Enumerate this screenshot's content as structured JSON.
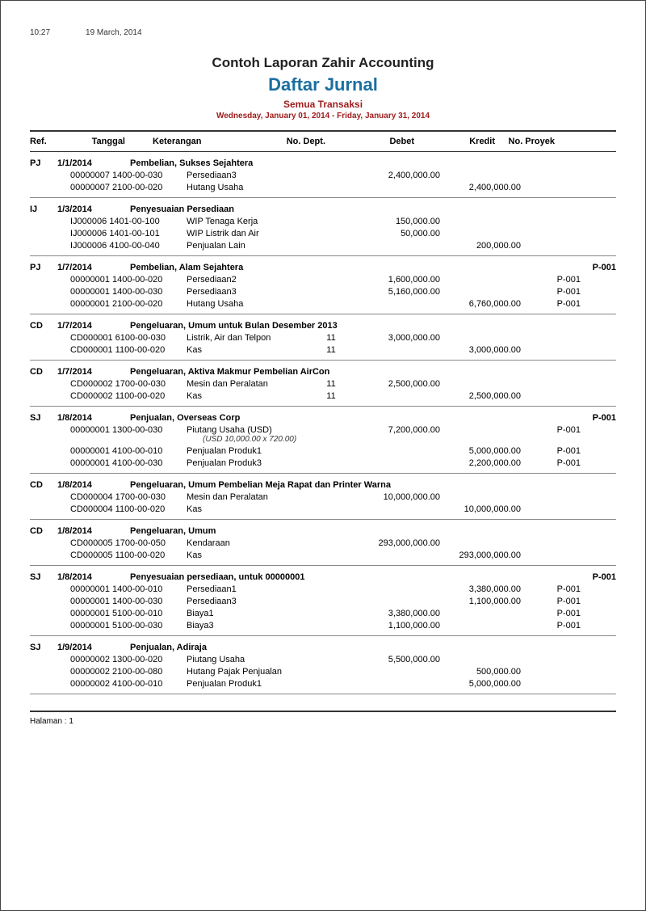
{
  "meta": {
    "time": "10:27",
    "date": "19 March, 2014"
  },
  "header": {
    "company": "Contoh Laporan Zahir Accounting",
    "title": "Daftar Jurnal",
    "subtitle": "Semua Transaksi",
    "range": "Wednesday, January 01, 2014 - Friday, January 31, 2014"
  },
  "columns": {
    "ref": "Ref.",
    "tanggal": "Tanggal",
    "ket": "Keterangan",
    "dept": "No. Dept.",
    "debet": "Debet",
    "kredit": "Kredit",
    "proyek": "No. Proyek"
  },
  "colors": {
    "title": "#1b6fa0",
    "subtitle": "#9f1b1b",
    "border": "#333333",
    "text": "#000000"
  },
  "groups": [
    {
      "ref": "PJ",
      "date": "1/1/2014",
      "desc": "Pembelian, Sukses Sejahtera",
      "proj": "",
      "lines": [
        {
          "code": "00000007 1400-00-030",
          "ket": "Persediaan3",
          "dept": "",
          "debet": "2,400,000.00",
          "kredit": "",
          "proj": ""
        },
        {
          "code": "00000007 2100-00-020",
          "ket": "Hutang Usaha",
          "dept": "",
          "debet": "",
          "kredit": "2,400,000.00",
          "proj": ""
        }
      ]
    },
    {
      "ref": "IJ",
      "date": "1/3/2014",
      "desc": "Penyesuaian Persediaan",
      "proj": "",
      "lines": [
        {
          "code": "IJ000006 1401-00-100",
          "ket": "WIP Tenaga Kerja",
          "dept": "",
          "debet": "150,000.00",
          "kredit": "",
          "proj": ""
        },
        {
          "code": "IJ000006 1401-00-101",
          "ket": "WIP Listrik dan Air",
          "dept": "",
          "debet": "50,000.00",
          "kredit": "",
          "proj": ""
        },
        {
          "code": "IJ000006 4100-00-040",
          "ket": "Penjualan Lain",
          "dept": "",
          "debet": "",
          "kredit": "200,000.00",
          "proj": ""
        }
      ]
    },
    {
      "ref": "PJ",
      "date": "1/7/2014",
      "desc": "Pembelian, Alam Sejahtera",
      "proj": "P-001",
      "lines": [
        {
          "code": "00000001 1400-00-020",
          "ket": "Persediaan2",
          "dept": "",
          "debet": "1,600,000.00",
          "kredit": "",
          "proj": "P-001"
        },
        {
          "code": "00000001 1400-00-030",
          "ket": "Persediaan3",
          "dept": "",
          "debet": "5,160,000.00",
          "kredit": "",
          "proj": "P-001"
        },
        {
          "code": "00000001 2100-00-020",
          "ket": "Hutang Usaha",
          "dept": "",
          "debet": "",
          "kredit": "6,760,000.00",
          "proj": "P-001"
        }
      ]
    },
    {
      "ref": "CD",
      "date": "1/7/2014",
      "desc": "Pengeluaran, Umum untuk Bulan Desember 2013",
      "proj": "",
      "lines": [
        {
          "code": "CD000001 6100-00-030",
          "ket": "Listrik, Air dan Telpon",
          "dept": "11",
          "debet": "3,000,000.00",
          "kredit": "",
          "proj": ""
        },
        {
          "code": "CD000001 1100-00-020",
          "ket": "Kas",
          "dept": "11",
          "debet": "",
          "kredit": "3,000,000.00",
          "proj": ""
        }
      ]
    },
    {
      "ref": "CD",
      "date": "1/7/2014",
      "desc": "Pengeluaran, Aktiva Makmur Pembelian AirCon",
      "proj": "",
      "lines": [
        {
          "code": "CD000002 1700-00-030",
          "ket": "Mesin dan Peralatan",
          "dept": "11",
          "debet": "2,500,000.00",
          "kredit": "",
          "proj": ""
        },
        {
          "code": "CD000002 1100-00-020",
          "ket": "Kas",
          "dept": "11",
          "debet": "",
          "kredit": "2,500,000.00",
          "proj": ""
        }
      ]
    },
    {
      "ref": "SJ",
      "date": "1/8/2014",
      "desc": "Penjualan, Overseas Corp",
      "proj": "P-001",
      "lines": [
        {
          "code": "00000001 1300-00-030",
          "ket": "Piutang Usaha (USD)",
          "dept": "",
          "debet": "7,200,000.00",
          "kredit": "",
          "proj": "P-001",
          "note": "(USD        10,000.00 x 720.00)"
        },
        {
          "code": "00000001 4100-00-010",
          "ket": "Penjualan Produk1",
          "dept": "",
          "debet": "",
          "kredit": "5,000,000.00",
          "proj": "P-001"
        },
        {
          "code": "00000001 4100-00-030",
          "ket": "Penjualan Produk3",
          "dept": "",
          "debet": "",
          "kredit": "2,200,000.00",
          "proj": "P-001"
        }
      ]
    },
    {
      "ref": "CD",
      "date": "1/8/2014",
      "desc": "Pengeluaran, Umum Pembelian Meja Rapat dan Printer Warna",
      "proj": "",
      "lines": [
        {
          "code": "CD000004 1700-00-030",
          "ket": "Mesin dan Peralatan",
          "dept": "",
          "debet": "10,000,000.00",
          "kredit": "",
          "proj": ""
        },
        {
          "code": "CD000004 1100-00-020",
          "ket": "Kas",
          "dept": "",
          "debet": "",
          "kredit": "10,000,000.00",
          "proj": ""
        }
      ]
    },
    {
      "ref": "CD",
      "date": "1/8/2014",
      "desc": "Pengeluaran, Umum",
      "proj": "",
      "lines": [
        {
          "code": "CD000005 1700-00-050",
          "ket": "Kendaraan",
          "dept": "",
          "debet": "293,000,000.00",
          "kredit": "",
          "proj": ""
        },
        {
          "code": "CD000005 1100-00-020",
          "ket": "Kas",
          "dept": "",
          "debet": "",
          "kredit": "293,000,000.00",
          "proj": ""
        }
      ]
    },
    {
      "ref": "SJ",
      "date": "1/8/2014",
      "desc": "Penyesuaian persediaan, untuk 00000001",
      "proj": "P-001",
      "lines": [
        {
          "code": "00000001 1400-00-010",
          "ket": "Persediaan1",
          "dept": "",
          "debet": "",
          "kredit": "3,380,000.00",
          "proj": "P-001"
        },
        {
          "code": "00000001 1400-00-030",
          "ket": "Persediaan3",
          "dept": "",
          "debet": "",
          "kredit": "1,100,000.00",
          "proj": "P-001"
        },
        {
          "code": "00000001 5100-00-010",
          "ket": "Biaya1",
          "dept": "",
          "debet": "3,380,000.00",
          "kredit": "",
          "proj": "P-001"
        },
        {
          "code": "00000001 5100-00-030",
          "ket": "Biaya3",
          "dept": "",
          "debet": "1,100,000.00",
          "kredit": "",
          "proj": "P-001"
        }
      ]
    },
    {
      "ref": "SJ",
      "date": "1/9/2014",
      "desc": "Penjualan, Adiraja",
      "proj": "",
      "lines": [
        {
          "code": "00000002 1300-00-020",
          "ket": "Piutang Usaha",
          "dept": "",
          "debet": "5,500,000.00",
          "kredit": "",
          "proj": ""
        },
        {
          "code": "00000002 2100-00-080",
          "ket": "Hutang Pajak Penjualan",
          "dept": "",
          "debet": "",
          "kredit": "500,000.00",
          "proj": ""
        },
        {
          "code": "00000002 4100-00-010",
          "ket": "Penjualan Produk1",
          "dept": "",
          "debet": "",
          "kredit": "5,000,000.00",
          "proj": ""
        }
      ]
    }
  ],
  "footer": {
    "page_label": "Halaman : 1"
  }
}
